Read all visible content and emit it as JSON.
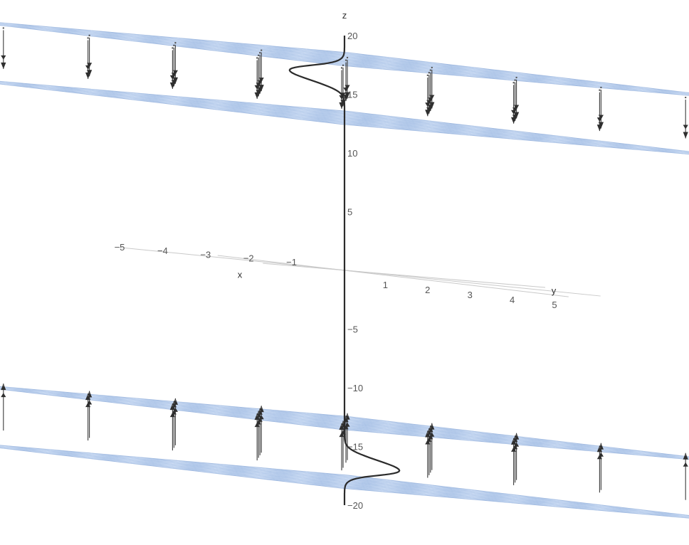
{
  "axes": {
    "x": {
      "label": "x",
      "ticks": [
        {
          "text": "−5",
          "value": -5
        },
        {
          "text": "−4",
          "value": -4
        },
        {
          "text": "−3",
          "value": -3
        },
        {
          "text": "−2",
          "value": -2
        },
        {
          "text": "−1",
          "value": -1
        }
      ]
    },
    "y": {
      "label": "y",
      "ticks": [
        {
          "text": "1",
          "value": 1
        },
        {
          "text": "2",
          "value": 2
        },
        {
          "text": "3",
          "value": 3
        },
        {
          "text": "4",
          "value": 4
        },
        {
          "text": "5",
          "value": 5
        }
      ]
    },
    "z": {
      "label": "z",
      "ticks": [
        {
          "text": "20",
          "value": 20
        },
        {
          "text": "15",
          "value": 15
        },
        {
          "text": "10",
          "value": 10
        },
        {
          "text": "5",
          "value": 5
        },
        {
          "text": "−5",
          "value": -5
        },
        {
          "text": "−10",
          "value": -10
        },
        {
          "text": "−15",
          "value": -15
        },
        {
          "text": "−20",
          "value": -20
        }
      ]
    }
  },
  "planes": [
    {
      "name": "top-upper",
      "z": 18
    },
    {
      "name": "top-lower",
      "z": 13
    },
    {
      "name": "bottom-upper",
      "z": -13
    },
    {
      "name": "bottom-lower",
      "z": -18
    }
  ],
  "vector_field": {
    "upper_direction": "down",
    "lower_direction": "up"
  },
  "curve": {
    "description": "bump profile along z-axis",
    "bumps": [
      {
        "z_center": 16.5,
        "displacement": -1.3
      },
      {
        "z_center": -16.5,
        "displacement": 1.3
      }
    ]
  },
  "colors": {
    "plane_fill": "#bed4f4",
    "plane_stroke": "#9fb9e0",
    "curve": "#2b2b2b",
    "axis": "#c9c9c9"
  }
}
